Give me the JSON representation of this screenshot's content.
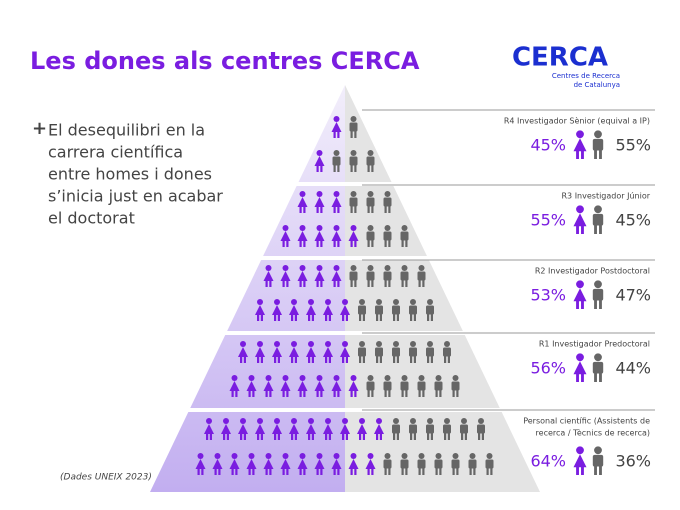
{
  "title": "Les dones als centres CERCA",
  "logo": {
    "name": "CERCA",
    "subtitle_lines": [
      "Centres de Recerca",
      "de Catalunya"
    ]
  },
  "bullet": "+",
  "description_lines": [
    "El desequilibri en la",
    "carrera científica",
    "entre homes i dones",
    "s’inicia just en acabar",
    "el doctorat"
  ],
  "source": "(Dades UNEIX 2023)",
  "levels": [
    {
      "label_lines": [
        "R4 Investigador Sènior (equival a IP)"
      ],
      "women": "45%",
      "men": "55%"
    },
    {
      "label_lines": [
        "R3 Investigador Júnior"
      ],
      "women": "55%",
      "men": "45%"
    },
    {
      "label_lines": [
        "R2 Investigador Postdoctoral"
      ],
      "women": "53%",
      "men": "47%"
    },
    {
      "label_lines": [
        "R1 Investigador Predoctoral"
      ],
      "women": "56%",
      "men": "44%"
    },
    {
      "label_lines": [
        "Personal científic (Assistents de",
        "recerca / Tècnics de recerca)"
      ],
      "women": "64%",
      "men": "36%"
    }
  ]
}
